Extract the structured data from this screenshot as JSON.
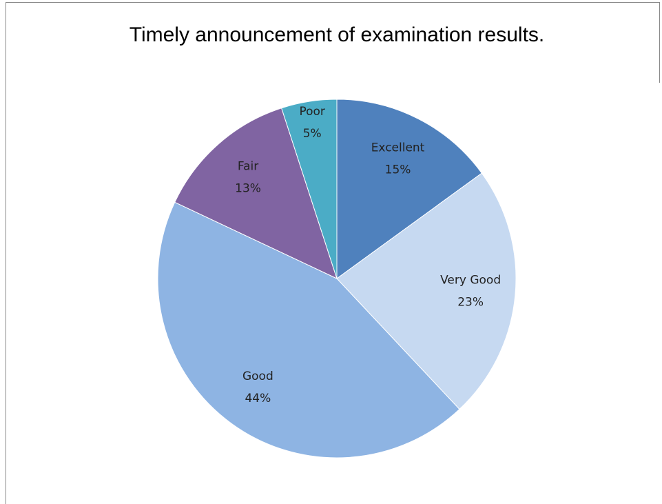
{
  "chart_data": {
    "type": "pie",
    "title": "Timely announcement of examination results.",
    "categories": [
      "Excellent",
      "Very Good",
      "Good",
      "Fair",
      "Poor"
    ],
    "values": [
      15,
      23,
      44,
      13,
      5
    ],
    "value_labels": [
      "15%",
      "23%",
      "44%",
      "13%",
      "5%"
    ],
    "colors": [
      "#4f81bd",
      "#c6d9f1",
      "#8eb4e3",
      "#8064a2",
      "#4bacc6"
    ]
  }
}
